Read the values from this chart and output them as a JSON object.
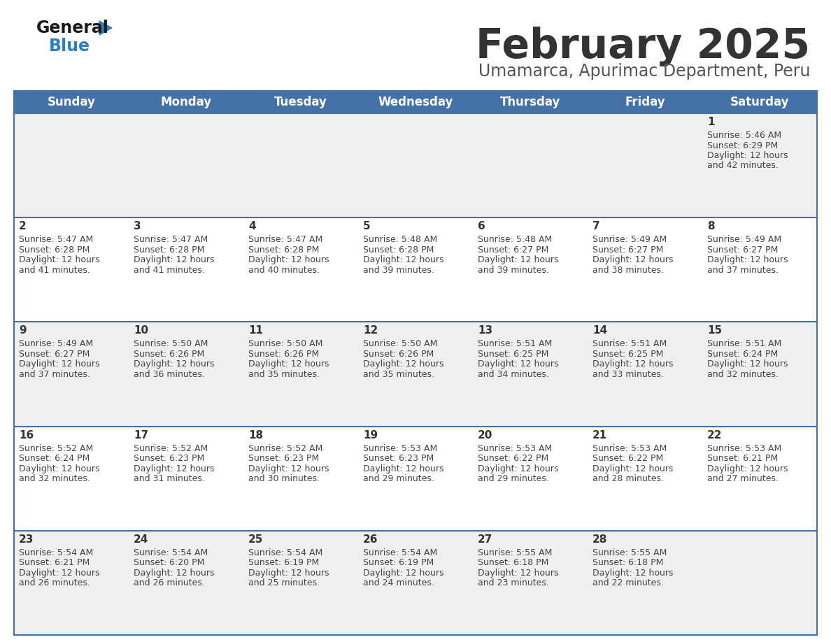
{
  "title": "February 2025",
  "subtitle": "Umamarca, Apurimac Department, Peru",
  "days_of_week": [
    "Sunday",
    "Monday",
    "Tuesday",
    "Wednesday",
    "Thursday",
    "Friday",
    "Saturday"
  ],
  "header_bg": "#4472A8",
  "header_text": "#FFFFFF",
  "cell_bg_odd": "#EFEFEF",
  "cell_bg_even": "#FFFFFF",
  "border_color": "#4472A8",
  "day_num_color": "#333333",
  "cell_text_color": "#444444",
  "title_color": "#333333",
  "subtitle_color": "#555555",
  "logo_general_color": "#1a1a1a",
  "logo_blue_color": "#2E7FC1",
  "weeks": [
    [
      null,
      null,
      null,
      null,
      null,
      null,
      1
    ],
    [
      2,
      3,
      4,
      5,
      6,
      7,
      8
    ],
    [
      9,
      10,
      11,
      12,
      13,
      14,
      15
    ],
    [
      16,
      17,
      18,
      19,
      20,
      21,
      22
    ],
    [
      23,
      24,
      25,
      26,
      27,
      28,
      null
    ]
  ],
  "day_data": {
    "1": {
      "sunrise": "5:46 AM",
      "sunset": "6:29 PM",
      "daylight_h": "12 hours",
      "daylight_m": "42 minutes"
    },
    "2": {
      "sunrise": "5:47 AM",
      "sunset": "6:28 PM",
      "daylight_h": "12 hours",
      "daylight_m": "41 minutes"
    },
    "3": {
      "sunrise": "5:47 AM",
      "sunset": "6:28 PM",
      "daylight_h": "12 hours",
      "daylight_m": "41 minutes"
    },
    "4": {
      "sunrise": "5:47 AM",
      "sunset": "6:28 PM",
      "daylight_h": "12 hours",
      "daylight_m": "40 minutes"
    },
    "5": {
      "sunrise": "5:48 AM",
      "sunset": "6:28 PM",
      "daylight_h": "12 hours",
      "daylight_m": "39 minutes"
    },
    "6": {
      "sunrise": "5:48 AM",
      "sunset": "6:27 PM",
      "daylight_h": "12 hours",
      "daylight_m": "39 minutes"
    },
    "7": {
      "sunrise": "5:49 AM",
      "sunset": "6:27 PM",
      "daylight_h": "12 hours",
      "daylight_m": "38 minutes"
    },
    "8": {
      "sunrise": "5:49 AM",
      "sunset": "6:27 PM",
      "daylight_h": "12 hours",
      "daylight_m": "37 minutes"
    },
    "9": {
      "sunrise": "5:49 AM",
      "sunset": "6:27 PM",
      "daylight_h": "12 hours",
      "daylight_m": "37 minutes"
    },
    "10": {
      "sunrise": "5:50 AM",
      "sunset": "6:26 PM",
      "daylight_h": "12 hours",
      "daylight_m": "36 minutes"
    },
    "11": {
      "sunrise": "5:50 AM",
      "sunset": "6:26 PM",
      "daylight_h": "12 hours",
      "daylight_m": "35 minutes"
    },
    "12": {
      "sunrise": "5:50 AM",
      "sunset": "6:26 PM",
      "daylight_h": "12 hours",
      "daylight_m": "35 minutes"
    },
    "13": {
      "sunrise": "5:51 AM",
      "sunset": "6:25 PM",
      "daylight_h": "12 hours",
      "daylight_m": "34 minutes"
    },
    "14": {
      "sunrise": "5:51 AM",
      "sunset": "6:25 PM",
      "daylight_h": "12 hours",
      "daylight_m": "33 minutes"
    },
    "15": {
      "sunrise": "5:51 AM",
      "sunset": "6:24 PM",
      "daylight_h": "12 hours",
      "daylight_m": "32 minutes"
    },
    "16": {
      "sunrise": "5:52 AM",
      "sunset": "6:24 PM",
      "daylight_h": "12 hours",
      "daylight_m": "32 minutes"
    },
    "17": {
      "sunrise": "5:52 AM",
      "sunset": "6:23 PM",
      "daylight_h": "12 hours",
      "daylight_m": "31 minutes"
    },
    "18": {
      "sunrise": "5:52 AM",
      "sunset": "6:23 PM",
      "daylight_h": "12 hours",
      "daylight_m": "30 minutes"
    },
    "19": {
      "sunrise": "5:53 AM",
      "sunset": "6:23 PM",
      "daylight_h": "12 hours",
      "daylight_m": "29 minutes"
    },
    "20": {
      "sunrise": "5:53 AM",
      "sunset": "6:22 PM",
      "daylight_h": "12 hours",
      "daylight_m": "29 minutes"
    },
    "21": {
      "sunrise": "5:53 AM",
      "sunset": "6:22 PM",
      "daylight_h": "12 hours",
      "daylight_m": "28 minutes"
    },
    "22": {
      "sunrise": "5:53 AM",
      "sunset": "6:21 PM",
      "daylight_h": "12 hours",
      "daylight_m": "27 minutes"
    },
    "23": {
      "sunrise": "5:54 AM",
      "sunset": "6:21 PM",
      "daylight_h": "12 hours",
      "daylight_m": "26 minutes"
    },
    "24": {
      "sunrise": "5:54 AM",
      "sunset": "6:20 PM",
      "daylight_h": "12 hours",
      "daylight_m": "26 minutes"
    },
    "25": {
      "sunrise": "5:54 AM",
      "sunset": "6:19 PM",
      "daylight_h": "12 hours",
      "daylight_m": "25 minutes"
    },
    "26": {
      "sunrise": "5:54 AM",
      "sunset": "6:19 PM",
      "daylight_h": "12 hours",
      "daylight_m": "24 minutes"
    },
    "27": {
      "sunrise": "5:55 AM",
      "sunset": "6:18 PM",
      "daylight_h": "12 hours",
      "daylight_m": "23 minutes"
    },
    "28": {
      "sunrise": "5:55 AM",
      "sunset": "6:18 PM",
      "daylight_h": "12 hours",
      "daylight_m": "22 minutes"
    }
  }
}
